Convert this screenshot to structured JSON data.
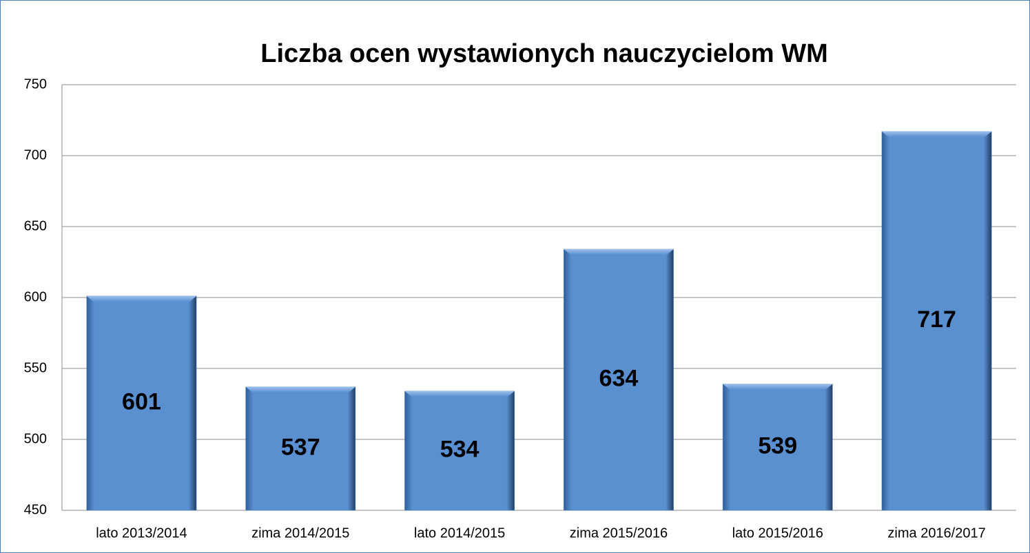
{
  "chart_data": {
    "type": "bar",
    "title": "Liczba ocen wystawionych nauczycielom WM",
    "categories": [
      "lato 2013/2014",
      "zima 2014/2015",
      "lato 2014/2015",
      "zima 2015/2016",
      "lato 2015/2016",
      "zima 2016/2017"
    ],
    "values": [
      601,
      537,
      534,
      634,
      539,
      717
    ],
    "color": "#4f81bd",
    "ylim": [
      450,
      750
    ],
    "yticks": [
      450,
      500,
      550,
      600,
      650,
      700,
      750
    ],
    "grid": true
  }
}
